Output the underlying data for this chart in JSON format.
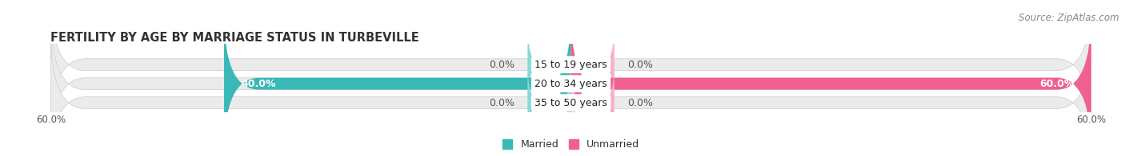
{
  "title": "FERTILITY BY AGE BY MARRIAGE STATUS IN TURBEVILLE",
  "source": "Source: ZipAtlas.com",
  "categories": [
    "15 to 19 years",
    "20 to 34 years",
    "35 to 50 years"
  ],
  "married": [
    0.0,
    40.0,
    0.0
  ],
  "unmarried": [
    0.0,
    60.0,
    0.0
  ],
  "married_color": "#3ab8b8",
  "married_stub_color": "#88d8d8",
  "unmarried_color": "#f06090",
  "unmarried_stub_color": "#f8b0c8",
  "bar_bg_color": "#ebebeb",
  "bar_bg_border": "#d8d8d8",
  "bar_height": 0.62,
  "xlim": [
    -60,
    60
  ],
  "xtick_left": -60.0,
  "xtick_right": 60.0,
  "stub_size": 5.0,
  "legend_married": "Married",
  "legend_unmarried": "Unmarried",
  "title_fontsize": 10.5,
  "label_fontsize": 9,
  "axis_fontsize": 8.5,
  "source_fontsize": 8.5,
  "value_label_fontsize": 9
}
